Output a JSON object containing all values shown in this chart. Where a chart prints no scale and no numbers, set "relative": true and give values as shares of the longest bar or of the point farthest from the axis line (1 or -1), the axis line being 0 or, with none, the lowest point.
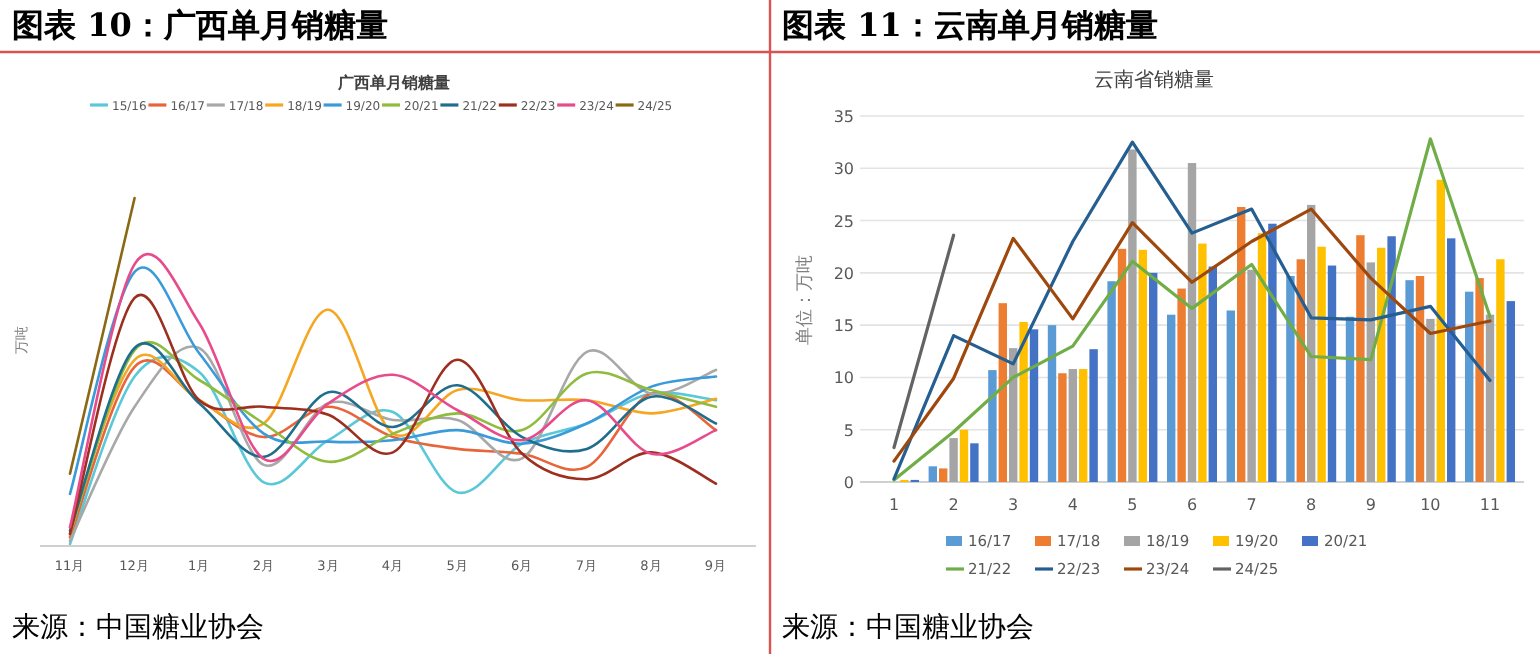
{
  "chart_data": [
    {
      "type": "line",
      "title": "图表 10：广西单月销糖量",
      "subtitle": "广西单月销糖量",
      "ylabel": "万吨",
      "relative": true,
      "legend": "top",
      "annotations": [
        "来源：中国糖业协会"
      ],
      "categories": [
        "11月",
        "12月",
        "1月",
        "2月",
        "3月",
        "4月",
        "5月",
        "6月",
        "7月",
        "8月",
        "9月"
      ],
      "series": [
        {
          "name": "15/16",
          "color": "#5bc8d8",
          "values": [
            0.006,
            0.487,
            0.5,
            0.183,
            0.304,
            0.385,
            0.154,
            0.294,
            0.352,
            0.438,
            0.419
          ]
        },
        {
          "name": "16/17",
          "color": "#e8653a",
          "values": [
            0.025,
            0.515,
            0.419,
            0.313,
            0.4,
            0.313,
            0.279,
            0.265,
            0.227,
            0.438,
            0.333
          ]
        },
        {
          "name": "17/18",
          "color": "#a8a8a8",
          "values": [
            0.015,
            0.4,
            0.569,
            0.233,
            0.41,
            0.362,
            0.362,
            0.252,
            0.558,
            0.438,
            0.506
          ]
        },
        {
          "name": "18/19",
          "color": "#f5a623",
          "values": [
            0.054,
            0.535,
            0.419,
            0.352,
            0.679,
            0.323,
            0.448,
            0.419,
            0.419,
            0.381,
            0.423
          ]
        },
        {
          "name": "19/20",
          "color": "#3b9ad9",
          "values": [
            0.15,
            0.788,
            0.554,
            0.323,
            0.3,
            0.304,
            0.333,
            0.294,
            0.352,
            0.458,
            0.487
          ]
        },
        {
          "name": "20/21",
          "color": "#8fbc3f",
          "values": [
            0.035,
            0.563,
            0.477,
            0.352,
            0.242,
            0.323,
            0.381,
            0.333,
            0.496,
            0.448,
            0.4
          ]
        },
        {
          "name": "21/22",
          "color": "#1f6e8c",
          "values": [
            0.044,
            0.569,
            0.41,
            0.256,
            0.442,
            0.342,
            0.462,
            0.313,
            0.279,
            0.429,
            0.352
          ]
        },
        {
          "name": "22/23",
          "color": "#9c2f1f",
          "values": [
            0.035,
            0.713,
            0.419,
            0.4,
            0.377,
            0.269,
            0.535,
            0.265,
            0.192,
            0.269,
            0.179
          ]
        },
        {
          "name": "23/24",
          "color": "#e84a8a",
          "values": [
            0.054,
            0.81,
            0.64,
            0.25,
            0.41,
            0.492,
            0.39,
            0.304,
            0.419,
            0.265,
            0.333
          ]
        },
        {
          "name": "24/25",
          "color": "#8b6914",
          "values": [
            0.208,
            1,
            null,
            null,
            null,
            null,
            null,
            null,
            null,
            null,
            null
          ]
        }
      ]
    },
    {
      "type": "bar",
      "title": "图表 11：云南单月销糖量",
      "subtitle": "云南省销糖量",
      "ylabel": "单位：万吨",
      "legend": "bottom",
      "grid": "y",
      "ylim": [
        0,
        35
      ],
      "yticks": [
        0,
        5,
        10,
        15,
        20,
        25,
        30,
        35
      ],
      "annotations": [
        "来源：中国糖业协会"
      ],
      "categories": [
        "1",
        "2",
        "3",
        "4",
        "5",
        "6",
        "7",
        "8",
        "9",
        "10",
        "11"
      ],
      "series": [
        {
          "name": "16/17",
          "color": "#5b9bd5",
          "values": [
            0,
            1.5,
            10.7,
            15.0,
            19.2,
            16.0,
            16.4,
            19.7,
            15.8,
            19.3,
            18.2
          ]
        },
        {
          "name": "17/18",
          "color": "#ed7d31",
          "values": [
            0,
            1.3,
            17.1,
            10.4,
            22.3,
            18.5,
            26.3,
            21.3,
            23.6,
            19.7,
            19.5
          ]
        },
        {
          "name": "18/19",
          "color": "#a5a5a5",
          "values": [
            null,
            4.2,
            12.8,
            10.8,
            31.8,
            30.5,
            20.3,
            26.5,
            21.0,
            15.6,
            16.0
          ]
        },
        {
          "name": "19/20",
          "color": "#ffc000",
          "values": [
            0.2,
            5.0,
            15.3,
            10.8,
            22.2,
            22.8,
            23.8,
            22.5,
            22.4,
            28.9,
            21.3
          ]
        },
        {
          "name": "20/21",
          "color": "#4472c4",
          "values": [
            0.2,
            3.7,
            14.6,
            12.7,
            20.0,
            20.6,
            24.7,
            20.7,
            23.5,
            23.3,
            17.3
          ]
        },
        {
          "name": "21/22",
          "type": "line",
          "color": "#70ad47",
          "values": [
            0.2,
            4.8,
            10.0,
            13.0,
            21.1,
            16.6,
            20.8,
            12.0,
            11.7,
            32.8,
            15.8
          ]
        },
        {
          "name": "22/23",
          "type": "line",
          "color": "#255e91",
          "values": [
            0.3,
            14.0,
            11.3,
            23.0,
            32.5,
            23.8,
            26.1,
            15.7,
            15.5,
            16.8,
            9.7
          ]
        },
        {
          "name": "23/24",
          "type": "line",
          "color": "#9e480e",
          "values": [
            2.0,
            9.9,
            23.3,
            15.6,
            24.8,
            19.1,
            23.0,
            26.1,
            19.5,
            14.2,
            15.4
          ]
        },
        {
          "name": "24/25",
          "type": "line",
          "color": "#636363",
          "values": [
            3.3,
            23.6,
            null,
            null,
            null,
            null,
            null,
            null,
            null,
            null,
            null
          ]
        }
      ]
    }
  ]
}
